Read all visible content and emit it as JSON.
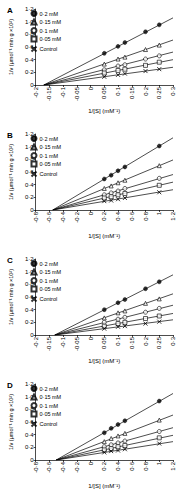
{
  "chart_data": [
    {
      "type": "scatter",
      "title": "A",
      "x_label": "1/[S] (mM⁻¹)",
      "y_label": "1/v (μmol⁻¹ min g ×10²)",
      "legend": "upper left",
      "xlim": [
        -0.2,
        0.3
      ],
      "ylim": [
        0,
        1.2
      ],
      "xticks": [
        {
          "value": -0.2,
          "label": "-0·2"
        },
        {
          "value": -0.15,
          "label": "-0·15"
        },
        {
          "value": -0.1,
          "label": "-0·1"
        },
        {
          "value": -0.05,
          "label": "-0·05"
        },
        0,
        {
          "value": 0.05,
          "label": "0·05"
        },
        {
          "value": 0.1,
          "label": "0·1"
        },
        {
          "value": 0.15,
          "label": "0·15"
        },
        {
          "value": 0.2,
          "label": "0·2"
        },
        {
          "value": 0.25,
          "label": "0·25"
        },
        {
          "value": 0.3,
          "label": "0·3"
        }
      ],
      "yticks": [
        0,
        {
          "value": 0.2,
          "label": "0·2"
        },
        {
          "value": 0.4,
          "label": "0·4"
        },
        {
          "value": 0.6,
          "label": "0·6"
        },
        {
          "value": 0.8,
          "label": "0·8"
        },
        {
          "value": 1.0,
          "label": "1·0"
        },
        {
          "value": 1.2,
          "label": "1·2"
        }
      ],
      "series": [
        {
          "name": "0·2 mM",
          "color": "#000000",
          "marker": "circle",
          "x": [
            0.05,
            0.1,
            0.125,
            0.2,
            0.25
          ],
          "values": [
            0.5,
            0.61,
            0.67,
            0.84,
            0.95
          ],
          "fit": [
            [
              -0.17,
              0
            ],
            [
              0.3,
              1.06
            ]
          ]
        },
        {
          "name": "0·15 mM",
          "color": "#000000",
          "marker": "triangle-open",
          "x": [
            0.05,
            0.1,
            0.125,
            0.2,
            0.25
          ],
          "values": [
            0.33,
            0.41,
            0.44,
            0.56,
            0.63
          ],
          "fit": [
            [
              -0.17,
              0
            ],
            [
              0.3,
              0.71
            ]
          ]
        },
        {
          "name": "0·1 mM",
          "color": "#000000",
          "marker": "circle-open",
          "x": [
            0.05,
            0.1,
            0.125,
            0.2,
            0.25
          ],
          "values": [
            0.24,
            0.3,
            0.32,
            0.41,
            0.46
          ],
          "fit": [
            [
              -0.17,
              0
            ],
            [
              0.3,
              0.52
            ]
          ]
        },
        {
          "name": "0·05 mM",
          "color": "#000000",
          "marker": "square-open",
          "x": [
            0.05,
            0.1,
            0.125,
            0.2,
            0.25
          ],
          "values": [
            0.19,
            0.23,
            0.25,
            0.31,
            0.36
          ],
          "fit": [
            [
              -0.17,
              0
            ],
            [
              0.3,
              0.4
            ]
          ]
        },
        {
          "name": "Control",
          "color": "#000000",
          "marker": "cross",
          "x": [
            0.05,
            0.1,
            0.125,
            0.2,
            0.25
          ],
          "values": [
            0.13,
            0.16,
            0.18,
            0.22,
            0.25
          ],
          "fit": [
            [
              -0.17,
              0
            ],
            [
              0.3,
              0.28
            ]
          ]
        }
      ]
    },
    {
      "type": "scatter",
      "title": "B",
      "x_label": "1/[S] (mM⁻¹)",
      "y_label": "1/v (μmol⁻¹ min g ×10²)",
      "legend": "upper left",
      "xlim": [
        -0.8,
        1.2
      ],
      "ylim": [
        0,
        1.2
      ],
      "xticks": [
        {
          "value": -0.8,
          "label": "-0·8"
        },
        {
          "value": -0.6,
          "label": "-0·6"
        },
        {
          "value": -0.4,
          "label": "-0·4"
        },
        {
          "value": -0.2,
          "label": "-0·2"
        },
        0,
        {
          "value": 0.2,
          "label": "0·2"
        },
        {
          "value": 0.4,
          "label": "0·4"
        },
        {
          "value": 0.6,
          "label": "0·6"
        },
        {
          "value": 0.8,
          "label": "0·8"
        },
        1,
        {
          "value": 1.2,
          "label": "1·2"
        }
      ],
      "yticks": [
        0,
        {
          "value": 0.2,
          "label": "0·2"
        },
        {
          "value": 0.4,
          "label": "0·4"
        },
        {
          "value": 0.6,
          "label": "0·6"
        },
        {
          "value": 0.8,
          "label": "0·8"
        },
        {
          "value": 1.0,
          "label": "1·0"
        },
        {
          "value": 1.2,
          "label": "1·2"
        }
      ],
      "series": [
        {
          "name": "0·2 mM",
          "color": "#000000",
          "marker": "circle",
          "x": [
            0.2,
            0.3,
            0.4,
            0.5,
            1.0
          ],
          "values": [
            0.49,
            0.55,
            0.62,
            0.68,
            1.01
          ],
          "fit": [
            [
              -0.55,
              0
            ],
            [
              1.2,
              1.14
            ]
          ]
        },
        {
          "name": "0·15 mM",
          "color": "#000000",
          "marker": "triangle-open",
          "x": [
            0.2,
            0.3,
            0.4,
            0.5,
            1.0
          ],
          "values": [
            0.34,
            0.38,
            0.43,
            0.47,
            0.7
          ],
          "fit": [
            [
              -0.55,
              0
            ],
            [
              1.2,
              0.79
            ]
          ]
        },
        {
          "name": "0·1 mM",
          "color": "#000000",
          "marker": "circle-open",
          "x": [
            0.2,
            0.3,
            0.4,
            0.5,
            1.0
          ],
          "values": [
            0.24,
            0.27,
            0.3,
            0.34,
            0.5
          ],
          "fit": [
            [
              -0.55,
              0
            ],
            [
              1.2,
              0.56
            ]
          ]
        },
        {
          "name": "0·05 mM",
          "color": "#000000",
          "marker": "square-open",
          "x": [
            0.2,
            0.3,
            0.4,
            0.5,
            1.0
          ],
          "values": [
            0.19,
            0.21,
            0.24,
            0.26,
            0.39
          ],
          "fit": [
            [
              -0.55,
              0
            ],
            [
              1.2,
              0.44
            ]
          ]
        },
        {
          "name": "Control",
          "color": "#000000",
          "marker": "cross",
          "x": [
            0.2,
            0.3,
            0.4,
            0.5,
            1.0
          ],
          "values": [
            0.14,
            0.15,
            0.17,
            0.19,
            0.28
          ],
          "fit": [
            [
              -0.55,
              0
            ],
            [
              1.2,
              0.32
            ]
          ]
        }
      ]
    },
    {
      "type": "scatter",
      "title": "C",
      "x_label": "1/[S] (mM⁻¹)",
      "y_label": "1/v (μmol⁻¹ min g ×10²)",
      "legend": "upper left",
      "xlim": [
        -0.2,
        0.3
      ],
      "ylim": [
        0,
        1.2
      ],
      "xticks": [
        {
          "value": -0.2,
          "label": "-0·2"
        },
        {
          "value": -0.15,
          "label": "-0·15"
        },
        {
          "value": -0.1,
          "label": "-0·1"
        },
        {
          "value": -0.05,
          "label": "-0·05"
        },
        0,
        {
          "value": 0.05,
          "label": "0·05"
        },
        {
          "value": 0.1,
          "label": "0·1"
        },
        {
          "value": 0.15,
          "label": "0·15"
        },
        {
          "value": 0.2,
          "label": "0·2"
        },
        {
          "value": 0.25,
          "label": "0·25"
        },
        {
          "value": 0.3,
          "label": "0·3"
        }
      ],
      "yticks": [
        0,
        {
          "value": 0.2,
          "label": "0·2"
        },
        {
          "value": 0.4,
          "label": "0·4"
        },
        {
          "value": 0.6,
          "label": "0·6"
        },
        {
          "value": 0.8,
          "label": "0·8"
        },
        {
          "value": 1.0,
          "label": "1·0"
        },
        {
          "value": 1.2,
          "label": "1·2"
        }
      ],
      "series": [
        {
          "name": "0·2 mM",
          "color": "#000000",
          "marker": "circle",
          "x": [
            0.05,
            0.1,
            0.125,
            0.2,
            0.25
          ],
          "values": [
            0.4,
            0.51,
            0.56,
            0.73,
            0.84
          ],
          "fit": [
            [
              -0.13,
              0
            ],
            [
              0.3,
              0.95
            ]
          ]
        },
        {
          "name": "0·15 mM",
          "color": "#000000",
          "marker": "triangle-open",
          "x": [
            0.05,
            0.1,
            0.125,
            0.2,
            0.25
          ],
          "values": [
            0.27,
            0.35,
            0.38,
            0.5,
            0.57
          ],
          "fit": [
            [
              -0.13,
              0
            ],
            [
              0.3,
              0.65
            ]
          ]
        },
        {
          "name": "0·1 mM",
          "color": "#000000",
          "marker": "circle-open",
          "x": [
            0.05,
            0.1,
            0.125,
            0.2,
            0.25
          ],
          "values": [
            0.2,
            0.25,
            0.28,
            0.36,
            0.42
          ],
          "fit": [
            [
              -0.13,
              0
            ],
            [
              0.3,
              0.47
            ]
          ]
        },
        {
          "name": "0·05 mM",
          "color": "#000000",
          "marker": "square-open",
          "x": [
            0.05,
            0.1,
            0.125,
            0.2,
            0.25
          ],
          "values": [
            0.14,
            0.18,
            0.2,
            0.26,
            0.3
          ],
          "fit": [
            [
              -0.13,
              0
            ],
            [
              0.3,
              0.34
            ]
          ]
        },
        {
          "name": "Control",
          "color": "#000000",
          "marker": "cross",
          "x": [
            0.05,
            0.1,
            0.125,
            0.2,
            0.25
          ],
          "values": [
            0.1,
            0.13,
            0.14,
            0.18,
            0.21
          ],
          "fit": [
            [
              -0.13,
              0
            ],
            [
              0.3,
              0.24
            ]
          ]
        }
      ]
    },
    {
      "type": "scatter",
      "title": "D",
      "x_label": "1/[S] (mM⁻¹)",
      "y_label": "1/v (μmol⁻¹ min g ×10²)",
      "legend": "upper left",
      "xlim": [
        -0.8,
        1.2
      ],
      "ylim": [
        0,
        1.2
      ],
      "xticks": [
        {
          "value": -0.8,
          "label": "-0·8"
        },
        {
          "value": -0.6,
          "label": "-0·6"
        },
        {
          "value": -0.4,
          "label": "-0·4"
        },
        {
          "value": -0.2,
          "label": "-0·2"
        },
        0,
        {
          "value": 0.2,
          "label": "0·2"
        },
        {
          "value": 0.4,
          "label": "0·4"
        },
        {
          "value": 0.6,
          "label": "0·6"
        },
        {
          "value": 0.8,
          "label": "0·8"
        },
        1,
        {
          "value": 1.2,
          "label": "1·2"
        }
      ],
      "yticks": [
        0,
        {
          "value": 0.2,
          "label": "0·2"
        },
        {
          "value": 0.4,
          "label": "0·4"
        },
        {
          "value": 0.6,
          "label": "0·6"
        },
        {
          "value": 0.8,
          "label": "0·8"
        },
        {
          "value": 1.0,
          "label": "1·0"
        },
        {
          "value": 1.2,
          "label": "1·2"
        }
      ],
      "series": [
        {
          "name": "0·2 mM",
          "color": "#000000",
          "marker": "circle",
          "x": [
            0.2,
            0.3,
            0.4,
            0.5,
            1.0
          ],
          "values": [
            0.43,
            0.5,
            0.56,
            0.62,
            0.93
          ],
          "fit": [
            [
              -0.5,
              0
            ],
            [
              1.2,
              1.05
            ]
          ]
        },
        {
          "name": "0·15 mM",
          "color": "#000000",
          "marker": "triangle-open",
          "x": [
            0.2,
            0.3,
            0.4,
            0.5,
            1.0
          ],
          "values": [
            0.29,
            0.34,
            0.38,
            0.42,
            0.63
          ],
          "fit": [
            [
              -0.5,
              0
            ],
            [
              1.2,
              0.71
            ]
          ]
        },
        {
          "name": "0·1 mM",
          "color": "#000000",
          "marker": "circle-open",
          "x": [
            0.2,
            0.3,
            0.4,
            0.5,
            1.0
          ],
          "values": [
            0.21,
            0.24,
            0.27,
            0.3,
            0.45
          ],
          "fit": [
            [
              -0.5,
              0
            ],
            [
              1.2,
              0.51
            ]
          ]
        },
        {
          "name": "0·05 mM",
          "color": "#000000",
          "marker": "square-open",
          "x": [
            0.2,
            0.3,
            0.4,
            0.5,
            1.0
          ],
          "values": [
            0.16,
            0.18,
            0.21,
            0.23,
            0.35
          ],
          "fit": [
            [
              -0.5,
              0
            ],
            [
              1.2,
              0.39
            ]
          ]
        },
        {
          "name": "Control",
          "color": "#000000",
          "marker": "cross",
          "x": [
            0.2,
            0.3,
            0.4,
            0.5,
            1.0
          ],
          "values": [
            0.12,
            0.14,
            0.15,
            0.17,
            0.26
          ],
          "fit": [
            [
              -0.5,
              0
            ],
            [
              1.2,
              0.29
            ]
          ]
        }
      ]
    }
  ]
}
